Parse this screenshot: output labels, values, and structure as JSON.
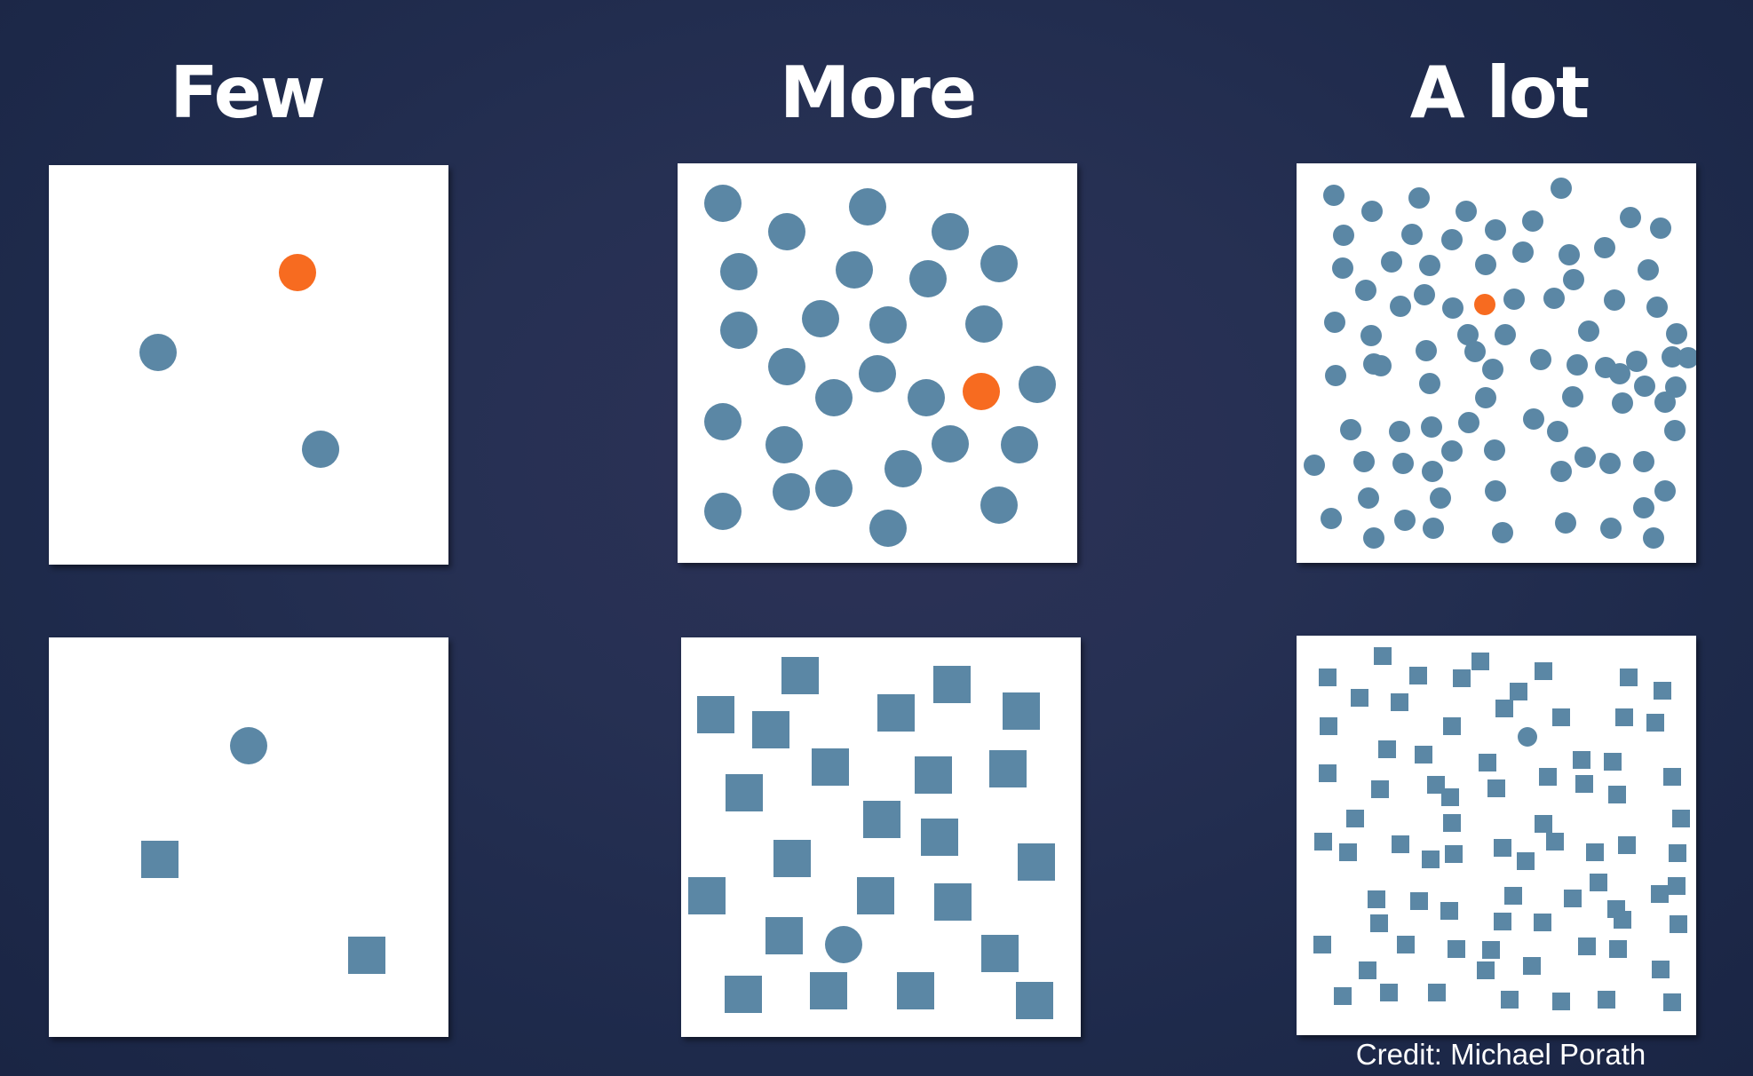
{
  "headings": {
    "few": "Few",
    "more": "More",
    "alot": "A lot"
  },
  "credit": "Credit: Michael Porath",
  "colors": {
    "blue": "#5b87a5",
    "orange": "#f76b20",
    "panel": "#ffffff"
  },
  "description_panels": {
    "few_color": {
      "distractors": 2,
      "target": "orange circle"
    },
    "more_color": {
      "distractors": 32,
      "target": "orange circle"
    },
    "alot_color": {
      "distractors": 98,
      "target": "orange circle"
    },
    "few_shape": {
      "distractors": 2,
      "target": "blue circle among squares"
    },
    "more_shape": {
      "distractors": 28,
      "target": "blue circle among squares"
    },
    "alot_shape": {
      "distractors": 89,
      "target": "blue circle among squares"
    }
  }
}
